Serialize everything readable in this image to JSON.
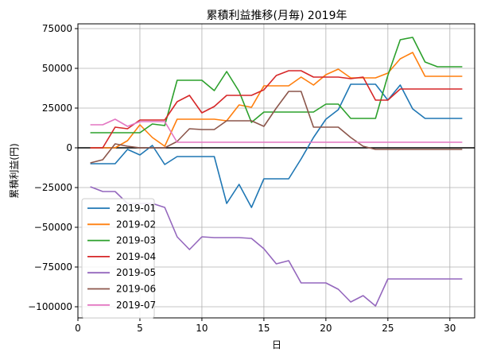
{
  "chart_data": {
    "type": "line",
    "title": "累積利益推移(月毎)  2019年",
    "xlabel": "日",
    "ylabel": "累積利益(円)",
    "xlim": [
      0,
      32
    ],
    "ylim": [
      -107000,
      78000
    ],
    "xticks": [
      0,
      5,
      10,
      15,
      20,
      25,
      30
    ],
    "yticks": [
      -100000,
      -75000,
      -50000,
      -25000,
      0,
      25000,
      50000,
      75000
    ],
    "grid": true,
    "zero_line": true,
    "legend_position": "lower-left",
    "x": [
      1,
      2,
      3,
      4,
      5,
      6,
      7,
      8,
      9,
      10,
      11,
      12,
      13,
      14,
      15,
      16,
      17,
      18,
      19,
      20,
      21,
      22,
      23,
      24,
      25,
      26,
      27,
      28,
      29,
      30,
      31
    ],
    "series": [
      {
        "name": "2019-01",
        "color": "#1f77b4",
        "values": [
          -10000,
          -10000,
          -10000,
          -1000,
          -4500,
          1500,
          -10500,
          -5500,
          -5500,
          -5500,
          -5500,
          -35000,
          -23000,
          -37500,
          -19500,
          -19500,
          -19500,
          -7000,
          6500,
          18000,
          24000,
          40000,
          40000,
          40000,
          30000,
          39500,
          24500,
          18500,
          18500,
          18500,
          18500
        ]
      },
      {
        "name": "2019-02",
        "color": "#ff7f0e",
        "values": [
          0,
          0,
          0,
          4500,
          14500,
          6500,
          1000,
          18000,
          18000,
          18000,
          18000,
          17000,
          27000,
          25500,
          39000,
          39000,
          39000,
          44500,
          39500,
          46000,
          49500,
          44000,
          44000,
          44000,
          47000,
          56000,
          60000,
          45000,
          45000,
          45000,
          45000
        ]
      },
      {
        "name": "2019-03",
        "color": "#2ca02c",
        "values": [
          9500,
          9500,
          9500,
          9500,
          9500,
          15000,
          14000,
          42500,
          42500,
          42500,
          36000,
          48000,
          35500,
          16000,
          22500,
          22500,
          22500,
          22500,
          22500,
          27500,
          27500,
          18500,
          18500,
          18500,
          45500,
          68000,
          69500,
          54000,
          51000,
          51000,
          51000
        ]
      },
      {
        "name": "2019-04",
        "color": "#d62728",
        "values": [
          0,
          0,
          13000,
          12000,
          17500,
          17500,
          17500,
          29000,
          33000,
          22000,
          26000,
          33000,
          33000,
          33000,
          36500,
          45500,
          48500,
          48500,
          44500,
          44500,
          44500,
          43500,
          44500,
          30000,
          30000,
          37000,
          37000,
          37000,
          37000,
          37000,
          37000
        ]
      },
      {
        "name": "2019-05",
        "color": "#9467bd",
        "values": [
          -24500,
          -27500,
          -27500,
          -35000,
          -35000,
          -35000,
          -37500,
          -56000,
          -64000,
          -56000,
          -56500,
          -56500,
          -56500,
          -57000,
          -63500,
          -73000,
          -71000,
          -85000,
          -85000,
          -85000,
          -89000,
          -97000,
          -93000,
          -99500,
          -82500,
          -82500,
          -82500,
          -82500,
          -82500,
          -82500,
          -82500
        ]
      },
      {
        "name": "2019-06",
        "color": "#8c564b",
        "values": [
          -9500,
          -7500,
          2500,
          1000,
          0,
          0,
          0,
          4000,
          12000,
          11500,
          11500,
          17000,
          17000,
          17000,
          13500,
          25000,
          35500,
          35500,
          13000,
          13000,
          13000,
          6500,
          1000,
          -1000,
          -1000,
          -1000,
          -1000,
          -1000,
          -1000,
          -1000,
          -1000
        ]
      },
      {
        "name": "2019-07",
        "color": "#e377c2",
        "values": [
          14500,
          14500,
          18000,
          13500,
          16500,
          16500,
          16500,
          3500,
          3500,
          3500,
          3500,
          3500,
          3500,
          3500,
          3500,
          3500,
          3500,
          3500,
          3500,
          3500,
          3500,
          3500,
          3500,
          3500,
          3500,
          3500,
          3500,
          3500,
          3500,
          3500,
          3500
        ]
      }
    ]
  }
}
